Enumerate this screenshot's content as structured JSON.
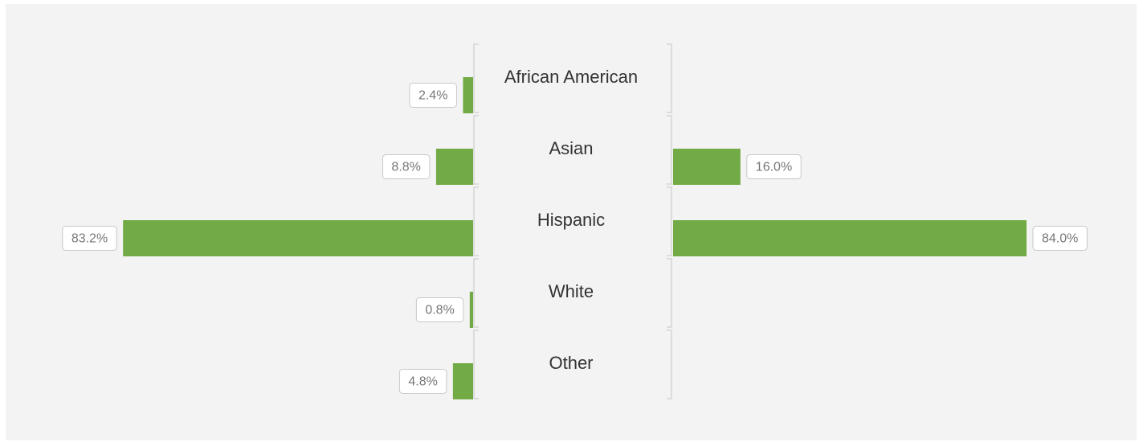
{
  "chart_data": {
    "type": "bar",
    "categories": [
      "African American",
      "Asian",
      "Hispanic",
      "White",
      "Other"
    ],
    "series": [
      {
        "color": "#72ab46",
        "values": [
          2.4,
          8.8,
          83.2,
          0.8,
          4.8
        ],
        "value_labels": [
          "2.4%",
          "8.8%",
          "83.2%",
          "0.8%",
          "4.8%"
        ]
      },
      {
        "color": "#72ab46",
        "values": [
          null,
          16.0,
          84.0,
          null,
          null
        ],
        "value_labels": [
          null,
          "16.0%",
          "84.0%",
          null,
          null
        ]
      }
    ]
  }
}
